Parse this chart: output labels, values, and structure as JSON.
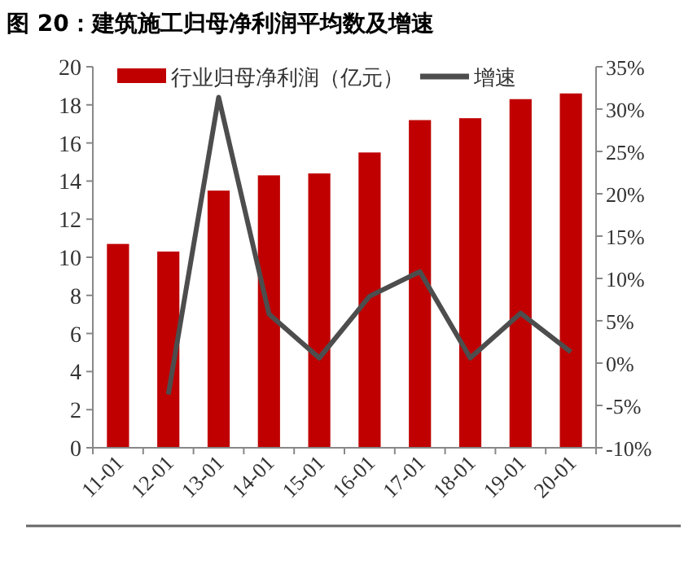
{
  "chart_data": {
    "type": "bar",
    "title": "图 20：建筑施工归母净利润平均数及增速",
    "categories": [
      "11-01",
      "12-01",
      "13-01",
      "14-01",
      "15-01",
      "16-01",
      "17-01",
      "18-01",
      "19-01",
      "20-01"
    ],
    "series": [
      {
        "name": "行业归母净利润（亿元）",
        "color": "#c00000",
        "values": [
          10.7,
          10.3,
          13.5,
          14.3,
          14.4,
          15.5,
          17.2,
          17.3,
          18.3,
          18.6
        ]
      },
      {
        "name": "增速",
        "type": "line",
        "axis": "y2",
        "color": "#4d4d4d",
        "values": [
          null,
          -3.7,
          31.4,
          5.8,
          0.6,
          7.9,
          10.8,
          0.6,
          5.9,
          1.3
        ]
      }
    ],
    "ylim": [
      0,
      20
    ],
    "yticks": [
      0,
      2,
      4,
      6,
      8,
      10,
      12,
      14,
      16,
      18,
      20
    ],
    "y2lim": [
      -10,
      35
    ],
    "y2ticks": [
      {
        "value": -10,
        "label": "-10%"
      },
      {
        "value": -5,
        "label": "-5%"
      },
      {
        "value": 0,
        "label": "0%"
      },
      {
        "value": 5,
        "label": "5%"
      },
      {
        "value": 10,
        "label": "10%"
      },
      {
        "value": 15,
        "label": "15%"
      },
      {
        "value": 20,
        "label": "20%"
      },
      {
        "value": 25,
        "label": "25%"
      },
      {
        "value": 30,
        "label": "30%"
      },
      {
        "value": 35,
        "label": "35%"
      }
    ],
    "legend": "top",
    "grid": false,
    "marker": "none"
  }
}
